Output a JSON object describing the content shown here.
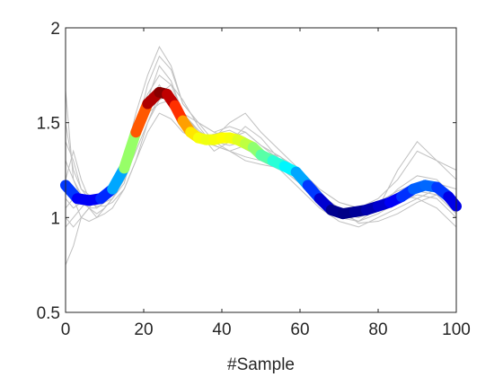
{
  "chart_data": {
    "type": "line",
    "title": "",
    "xlabel": "#Sample",
    "ylabel": "",
    "xlim": [
      0,
      100
    ],
    "ylim": [
      0.5,
      2
    ],
    "xticks": [
      0,
      20,
      40,
      60,
      80,
      100
    ],
    "xtick_labels": [
      "0",
      "20",
      "40",
      "60",
      "80",
      "100"
    ],
    "yticks": [
      0.5,
      1,
      1.5,
      2
    ],
    "ytick_labels": [
      "0.5",
      "1",
      "1.5",
      "2"
    ],
    "grid": false,
    "legend": "none",
    "colors": {
      "background_series": "#c0c0c0",
      "axes": "#262626",
      "colormap": "jet"
    },
    "main_series": {
      "x": [
        0,
        3,
        6,
        9,
        12,
        15,
        18,
        21,
        24,
        26,
        28,
        30,
        32,
        34,
        36,
        38,
        40,
        42,
        44,
        46,
        48,
        50,
        53,
        56,
        59,
        62,
        65,
        68,
        71,
        74,
        77,
        80,
        83,
        86,
        89,
        92,
        95,
        98,
        100
      ],
      "y": [
        1.17,
        1.1,
        1.09,
        1.1,
        1.15,
        1.26,
        1.45,
        1.6,
        1.66,
        1.65,
        1.59,
        1.51,
        1.45,
        1.42,
        1.41,
        1.41,
        1.42,
        1.42,
        1.41,
        1.39,
        1.37,
        1.33,
        1.3,
        1.27,
        1.24,
        1.17,
        1.1,
        1.04,
        1.02,
        1.03,
        1.04,
        1.06,
        1.08,
        1.11,
        1.15,
        1.17,
        1.16,
        1.11,
        1.06
      ]
    },
    "background_series": [
      {
        "x": [
          0,
          2,
          4,
          6,
          8,
          10,
          12,
          15,
          18,
          21,
          24,
          27,
          30,
          34,
          38,
          42,
          46,
          50,
          55,
          60,
          65,
          70,
          75,
          80,
          85,
          90,
          95,
          100
        ],
        "y": [
          1.67,
          1.2,
          1.1,
          1.05,
          1.05,
          1.08,
          1.12,
          1.25,
          1.45,
          1.7,
          1.85,
          1.78,
          1.6,
          1.5,
          1.45,
          1.48,
          1.45,
          1.38,
          1.3,
          1.2,
          1.12,
          1.05,
          1.0,
          1.05,
          1.15,
          1.22,
          1.2,
          1.1
        ]
      },
      {
        "x": [
          0,
          2,
          4,
          6,
          8,
          10,
          12,
          15,
          18,
          21,
          24,
          27,
          30,
          34,
          38,
          42,
          46,
          50,
          55,
          60,
          65,
          70,
          75,
          80,
          85,
          90,
          95,
          100
        ],
        "y": [
          0.75,
          0.85,
          1.0,
          1.05,
          1.0,
          1.05,
          1.1,
          1.2,
          1.4,
          1.55,
          1.6,
          1.62,
          1.55,
          1.45,
          1.4,
          1.35,
          1.38,
          1.3,
          1.25,
          1.15,
          1.05,
          0.98,
          0.95,
          1.0,
          1.05,
          1.1,
          1.15,
          1.05
        ]
      },
      {
        "x": [
          0,
          2,
          4,
          6,
          8,
          10,
          12,
          15,
          18,
          21,
          24,
          27,
          30,
          34,
          38,
          42,
          46,
          50,
          55,
          60,
          65,
          70,
          75,
          80,
          85,
          90,
          95,
          100
        ],
        "y": [
          1.4,
          1.3,
          1.15,
          1.12,
          1.1,
          1.1,
          1.15,
          1.3,
          1.5,
          1.65,
          1.75,
          1.7,
          1.55,
          1.45,
          1.42,
          1.5,
          1.55,
          1.45,
          1.35,
          1.25,
          1.15,
          1.08,
          1.05,
          1.1,
          1.2,
          1.35,
          1.3,
          1.2
        ]
      },
      {
        "x": [
          0,
          2,
          4,
          6,
          8,
          10,
          12,
          15,
          18,
          21,
          24,
          27,
          30,
          34,
          38,
          42,
          46,
          50,
          55,
          60,
          65,
          70,
          75,
          80,
          85,
          90,
          95,
          100
        ],
        "y": [
          1.0,
          0.95,
          1.0,
          1.05,
          1.1,
          1.12,
          1.2,
          1.3,
          1.55,
          1.75,
          1.9,
          1.8,
          1.6,
          1.5,
          1.4,
          1.38,
          1.4,
          1.35,
          1.32,
          1.25,
          1.1,
          1.0,
          0.98,
          1.02,
          1.08,
          1.12,
          1.1,
          1.0
        ]
      },
      {
        "x": [
          0,
          2,
          4,
          6,
          8,
          10,
          12,
          15,
          18,
          21,
          24,
          27,
          30,
          34,
          38,
          42,
          46,
          50,
          55,
          60,
          65,
          70,
          75,
          80,
          85,
          90,
          95,
          100
        ],
        "y": [
          1.2,
          1.35,
          1.2,
          1.1,
          1.05,
          1.08,
          1.1,
          1.2,
          1.35,
          1.5,
          1.65,
          1.7,
          1.62,
          1.48,
          1.38,
          1.35,
          1.3,
          1.28,
          1.26,
          1.18,
          1.08,
          1.02,
          1.0,
          1.05,
          1.1,
          1.15,
          1.18,
          1.15
        ]
      },
      {
        "x": [
          0,
          2,
          4,
          6,
          8,
          10,
          12,
          15,
          18,
          21,
          24,
          27,
          30,
          34,
          38,
          42,
          46,
          50,
          55,
          60,
          65,
          70,
          75,
          80,
          85,
          90,
          95,
          100
        ],
        "y": [
          1.1,
          1.05,
          1.08,
          1.05,
          1.02,
          1.05,
          1.1,
          1.18,
          1.4,
          1.6,
          1.7,
          1.6,
          1.5,
          1.45,
          1.35,
          1.4,
          1.48,
          1.42,
          1.3,
          1.22,
          1.12,
          1.05,
          1.02,
          1.08,
          1.12,
          1.1,
          1.05,
          0.95
        ]
      },
      {
        "x": [
          0,
          2,
          4,
          6,
          8,
          10,
          12,
          15,
          18,
          21,
          24,
          27,
          30,
          34,
          38,
          42,
          46,
          50,
          55,
          60,
          65,
          70,
          75,
          80,
          85,
          90,
          95,
          100
        ],
        "y": [
          1.3,
          1.2,
          1.12,
          1.08,
          1.06,
          1.06,
          1.08,
          1.15,
          1.3,
          1.45,
          1.55,
          1.52,
          1.45,
          1.4,
          1.38,
          1.35,
          1.32,
          1.3,
          1.28,
          1.2,
          1.1,
          1.02,
          0.98,
          1.05,
          1.25,
          1.4,
          1.3,
          1.25
        ]
      },
      {
        "x": [
          0,
          2,
          4,
          6,
          8,
          10,
          12,
          15,
          18,
          21,
          24,
          27,
          30,
          34,
          38,
          42,
          46,
          50,
          55,
          60,
          65,
          70,
          75,
          80,
          85,
          90,
          95,
          100
        ],
        "y": [
          1.05,
          1.1,
          1.0,
          0.98,
          1.0,
          1.02,
          1.05,
          1.15,
          1.3,
          1.5,
          1.62,
          1.65,
          1.55,
          1.5,
          1.45,
          1.42,
          1.45,
          1.38,
          1.32,
          1.22,
          1.1,
          1.05,
          0.97,
          0.98,
          1.02,
          1.08,
          1.12,
          1.08
        ]
      },
      {
        "x": [
          0,
          2,
          4,
          6,
          8,
          10,
          12,
          15,
          18,
          21,
          24,
          27,
          30,
          34,
          38,
          42,
          46,
          50,
          55,
          60,
          65,
          70,
          75,
          80,
          85,
          90,
          95,
          100
        ],
        "y": [
          0.95,
          1.0,
          1.05,
          1.1,
          1.12,
          1.1,
          1.15,
          1.25,
          1.45,
          1.6,
          1.68,
          1.58,
          1.48,
          1.42,
          1.44,
          1.46,
          1.42,
          1.36,
          1.3,
          1.24,
          1.15,
          1.08,
          1.05,
          1.08,
          1.14,
          1.18,
          1.15,
          1.1
        ]
      },
      {
        "x": [
          0,
          2,
          4,
          6,
          8,
          10,
          12,
          15,
          18,
          21,
          24,
          27,
          30,
          34,
          38,
          42,
          46,
          50,
          55,
          60,
          65,
          70,
          75,
          80,
          85,
          90,
          95,
          100
        ],
        "y": [
          1.5,
          1.25,
          1.15,
          1.1,
          1.08,
          1.1,
          1.12,
          1.22,
          1.42,
          1.62,
          1.8,
          1.72,
          1.55,
          1.46,
          1.4,
          1.44,
          1.36,
          1.32,
          1.28,
          1.2,
          1.1,
          1.04,
          1.0,
          1.04,
          1.1,
          1.14,
          1.12,
          1.02
        ]
      }
    ]
  }
}
